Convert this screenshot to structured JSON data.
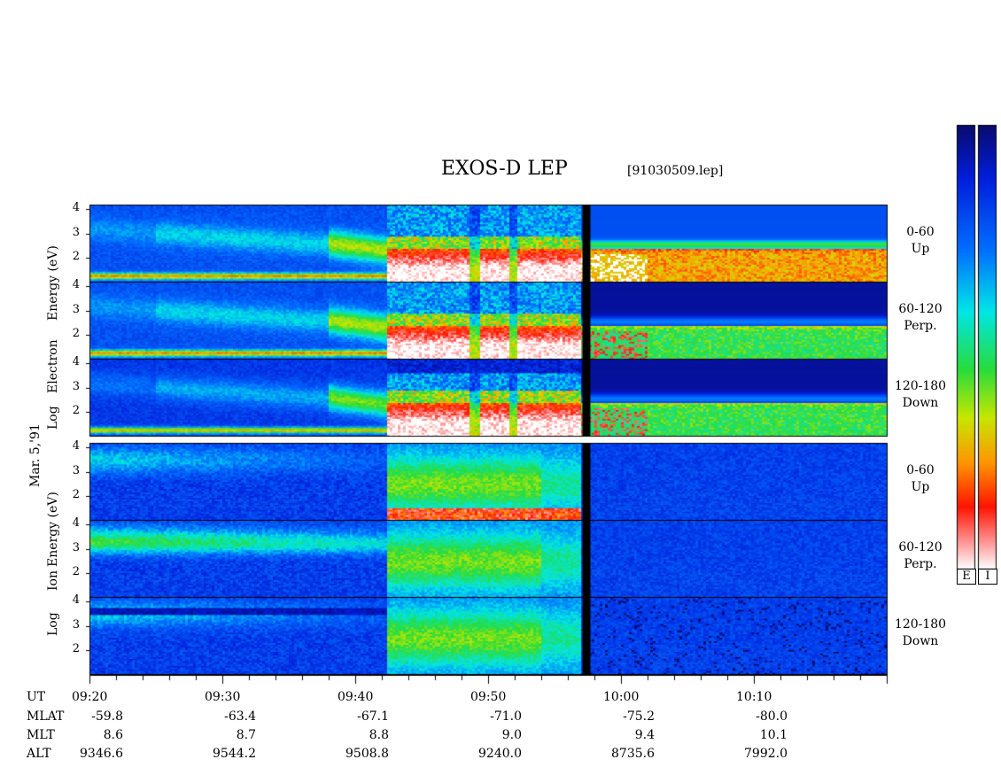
{
  "chart_data": {
    "type": "heatmap",
    "title": "EXOS-D LEP",
    "file_label": "[91030509.lep]",
    "date_label": "Mar. 5,'91",
    "electron_ylabel": [
      "Log",
      "Electron",
      "Energy (eV)"
    ],
    "ion_ylabel": [
      "Log",
      "Ion",
      "Energy (eV)"
    ],
    "y_ticks": [
      "4",
      "3",
      "2"
    ],
    "ylim": [
      1,
      4.2
    ],
    "panels": [
      {
        "species": "Electron",
        "angle": "0-60",
        "direction": "Up"
      },
      {
        "species": "Electron",
        "angle": "60-120",
        "direction": "Perp."
      },
      {
        "species": "Electron",
        "angle": "120-180",
        "direction": "Down"
      },
      {
        "species": "Ion",
        "angle": "0-60",
        "direction": "Up"
      },
      {
        "species": "Ion",
        "angle": "60-120",
        "direction": "Perp."
      },
      {
        "species": "Ion",
        "angle": "120-180",
        "direction": "Down"
      }
    ],
    "colorbar_labels": [
      "E",
      "I"
    ],
    "time_range_min": [
      560,
      620
    ],
    "data_gap_min": [
      597.1,
      597.7
    ],
    "x_axis": {
      "row_labels": [
        "UT",
        "MLAT",
        "MLT",
        "ALT"
      ],
      "columns": [
        {
          "t": 560,
          "UT": "09:20",
          "MLAT": "-59.8",
          "MLT": "8.6",
          "ALT": "9346.6"
        },
        {
          "t": 570,
          "UT": "09:30",
          "MLAT": "-63.4",
          "MLT": "8.7",
          "ALT": "9544.2"
        },
        {
          "t": 580,
          "UT": "09:40",
          "MLAT": "-67.1",
          "MLT": "8.8",
          "ALT": "9508.8"
        },
        {
          "t": 590,
          "UT": "09:50",
          "MLAT": "-71.0",
          "MLT": "9.0",
          "ALT": "9240.0"
        },
        {
          "t": 600,
          "UT": "10:00",
          "MLAT": "-75.2",
          "MLT": "9.4",
          "ALT": "8735.6"
        },
        {
          "t": 610,
          "UT": "10:10",
          "MLAT": "-80.0",
          "MLT": "10.1",
          "ALT": "7992.0"
        }
      ]
    }
  }
}
